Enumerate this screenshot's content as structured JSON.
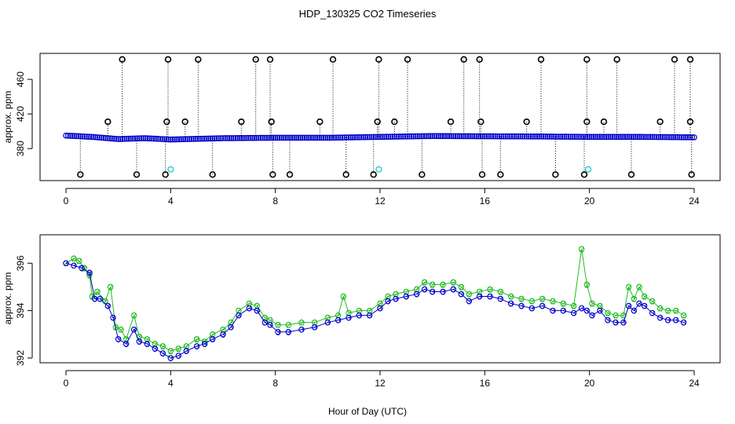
{
  "title": "HDP_130325  CO2 Timeseries",
  "xlabel": "Hour of Day (UTC)",
  "colors": {
    "blue": "#0000cc",
    "green": "#22bb22",
    "cyan": "#22cccc",
    "black": "#000000"
  },
  "chart_data": [
    {
      "type": "scatter",
      "name": "top-panel",
      "ylabel": "approx. ppm",
      "xlim": [
        0,
        24
      ],
      "ylim": [
        343,
        490
      ],
      "x_ticks": [
        "0",
        "4",
        "8",
        "12",
        "16",
        "20",
        "24"
      ],
      "y_ticks": [
        "380",
        "420",
        "460"
      ],
      "x_tick_values": [
        0,
        4,
        8,
        12,
        16,
        20,
        24
      ],
      "y_tick_values": [
        380,
        420,
        460
      ],
      "baseline": [
        [
          0,
          395
        ],
        [
          1,
          393.5
        ],
        [
          2,
          391
        ],
        [
          3,
          392
        ],
        [
          4,
          390.5
        ],
        [
          6,
          392
        ],
        [
          8,
          392.5
        ],
        [
          10,
          392.5
        ],
        [
          12,
          393.5
        ],
        [
          14,
          394.5
        ],
        [
          16,
          394.2
        ],
        [
          18,
          394
        ],
        [
          20,
          393.5
        ],
        [
          22,
          393.5
        ],
        [
          24,
          393
        ]
      ],
      "high_spikes_x": [
        2.15,
        3.9,
        5.05,
        7.25,
        7.8,
        10.2,
        11.95,
        13.05,
        15.2,
        15.8,
        18.15,
        19.9,
        21.05,
        23.25,
        23.85
      ],
      "high_spike_value": 483,
      "mid_spikes_x": [
        1.6,
        3.85,
        4.55,
        6.7,
        7.85,
        9.7,
        11.9,
        12.55,
        14.7,
        15.85,
        17.6,
        19.9,
        20.55,
        22.7,
        23.85
      ],
      "mid_spike_value": 411,
      "low_spikes_x": [
        0.55,
        2.7,
        3.8,
        5.6,
        7.9,
        8.55,
        10.7,
        11.75,
        13.6,
        15.9,
        16.6,
        18.7,
        19.8,
        21.6,
        23.9
      ],
      "low_spike_value": 350,
      "cyan_points": [
        [
          4.0,
          356
        ],
        [
          11.95,
          356
        ],
        [
          19.95,
          356
        ]
      ]
    },
    {
      "type": "scatter",
      "name": "bottom-panel",
      "ylabel": "approx. ppm",
      "xlim": [
        0,
        24
      ],
      "ylim": [
        391.8,
        397.2
      ],
      "x_ticks": [
        "0",
        "4",
        "8",
        "12",
        "16",
        "20",
        "24"
      ],
      "y_ticks": [
        "392",
        "394",
        "396"
      ],
      "x_tick_values": [
        0,
        4,
        8,
        12,
        16,
        20,
        24
      ],
      "y_tick_values": [
        392,
        394,
        396
      ],
      "series": [
        {
          "name": "2",
          "color": "green",
          "points": [
            [
              0,
              396
            ],
            [
              0.3,
              396.2
            ],
            [
              0.5,
              396.1
            ],
            [
              0.7,
              395.8
            ],
            [
              0.9,
              395.5
            ],
            [
              1.0,
              394.6
            ],
            [
              1.2,
              394.8
            ],
            [
              1.5,
              394.4
            ],
            [
              1.7,
              395.0
            ],
            [
              1.9,
              393.3
            ],
            [
              2.1,
              393.2
            ],
            [
              2.3,
              392.8
            ],
            [
              2.6,
              393.8
            ],
            [
              2.8,
              392.9
            ],
            [
              3.1,
              392.8
            ],
            [
              3.4,
              392.6
            ],
            [
              3.7,
              392.5
            ],
            [
              4.0,
              392.3
            ],
            [
              4.3,
              392.4
            ],
            [
              4.6,
              392.5
            ],
            [
              5.0,
              392.8
            ],
            [
              5.3,
              392.7
            ],
            [
              5.6,
              393.0
            ],
            [
              6.0,
              393.2
            ],
            [
              6.3,
              393.5
            ],
            [
              6.6,
              394.0
            ],
            [
              7.0,
              394.3
            ],
            [
              7.3,
              394.2
            ],
            [
              7.6,
              393.7
            ],
            [
              7.8,
              393.6
            ],
            [
              8.1,
              393.4
            ],
            [
              8.5,
              393.4
            ],
            [
              9.0,
              393.5
            ],
            [
              9.5,
              393.5
            ],
            [
              10.0,
              393.7
            ],
            [
              10.4,
              393.8
            ],
            [
              10.6,
              394.6
            ],
            [
              10.8,
              393.9
            ],
            [
              11.2,
              394.0
            ],
            [
              11.6,
              394.0
            ],
            [
              12.0,
              394.3
            ],
            [
              12.3,
              394.6
            ],
            [
              12.6,
              394.7
            ],
            [
              13.0,
              394.8
            ],
            [
              13.4,
              394.9
            ],
            [
              13.7,
              395.2
            ],
            [
              14.0,
              395.1
            ],
            [
              14.4,
              395.1
            ],
            [
              14.8,
              395.2
            ],
            [
              15.1,
              395.0
            ],
            [
              15.4,
              394.7
            ],
            [
              15.8,
              394.8
            ],
            [
              16.2,
              394.9
            ],
            [
              16.6,
              394.8
            ],
            [
              17.0,
              394.6
            ],
            [
              17.4,
              394.5
            ],
            [
              17.8,
              394.4
            ],
            [
              18.2,
              394.5
            ],
            [
              18.6,
              394.4
            ],
            [
              19.0,
              394.3
            ],
            [
              19.4,
              394.2
            ],
            [
              19.7,
              396.6
            ],
            [
              19.9,
              395.1
            ],
            [
              20.1,
              394.3
            ],
            [
              20.4,
              394.2
            ],
            [
              20.7,
              393.9
            ],
            [
              21.0,
              393.8
            ],
            [
              21.3,
              393.8
            ],
            [
              21.5,
              395.0
            ],
            [
              21.7,
              394.5
            ],
            [
              21.9,
              395.0
            ],
            [
              22.1,
              394.6
            ],
            [
              22.4,
              394.4
            ],
            [
              22.7,
              394.1
            ],
            [
              23.0,
              394.0
            ],
            [
              23.3,
              394.0
            ],
            [
              23.6,
              393.8
            ]
          ]
        },
        {
          "name": "3",
          "color": "blue",
          "points": [
            [
              0,
              396
            ],
            [
              0.3,
              395.9
            ],
            [
              0.6,
              395.8
            ],
            [
              0.9,
              395.6
            ],
            [
              1.1,
              394.5
            ],
            [
              1.3,
              394.5
            ],
            [
              1.6,
              394.2
            ],
            [
              1.8,
              393.7
            ],
            [
              2.0,
              392.8
            ],
            [
              2.3,
              392.6
            ],
            [
              2.6,
              393.2
            ],
            [
              2.8,
              392.7
            ],
            [
              3.1,
              392.6
            ],
            [
              3.4,
              392.4
            ],
            [
              3.7,
              392.2
            ],
            [
              4.0,
              392.0
            ],
            [
              4.3,
              392.1
            ],
            [
              4.6,
              392.3
            ],
            [
              5.0,
              392.5
            ],
            [
              5.3,
              392.6
            ],
            [
              5.6,
              392.8
            ],
            [
              6.0,
              393.0
            ],
            [
              6.3,
              393.3
            ],
            [
              6.6,
              393.8
            ],
            [
              7.0,
              394.1
            ],
            [
              7.3,
              394.0
            ],
            [
              7.6,
              393.5
            ],
            [
              7.8,
              393.4
            ],
            [
              8.1,
              393.1
            ],
            [
              8.5,
              393.1
            ],
            [
              9.0,
              393.2
            ],
            [
              9.5,
              393.3
            ],
            [
              10.0,
              393.5
            ],
            [
              10.4,
              393.6
            ],
            [
              10.8,
              393.7
            ],
            [
              11.2,
              393.8
            ],
            [
              11.6,
              393.8
            ],
            [
              12.0,
              394.1
            ],
            [
              12.3,
              394.4
            ],
            [
              12.6,
              394.5
            ],
            [
              13.0,
              394.6
            ],
            [
              13.4,
              394.7
            ],
            [
              13.7,
              394.9
            ],
            [
              14.0,
              394.8
            ],
            [
              14.4,
              394.8
            ],
            [
              14.8,
              394.9
            ],
            [
              15.1,
              394.7
            ],
            [
              15.4,
              394.4
            ],
            [
              15.8,
              394.6
            ],
            [
              16.2,
              394.6
            ],
            [
              16.6,
              394.5
            ],
            [
              17.0,
              394.3
            ],
            [
              17.4,
              394.2
            ],
            [
              17.8,
              394.1
            ],
            [
              18.2,
              394.2
            ],
            [
              18.6,
              394.0
            ],
            [
              19.0,
              394.0
            ],
            [
              19.4,
              393.9
            ],
            [
              19.7,
              394.1
            ],
            [
              19.9,
              394.0
            ],
            [
              20.1,
              393.8
            ],
            [
              20.4,
              394.0
            ],
            [
              20.7,
              393.6
            ],
            [
              21.0,
              393.5
            ],
            [
              21.3,
              393.5
            ],
            [
              21.5,
              394.2
            ],
            [
              21.7,
              394.0
            ],
            [
              21.9,
              394.3
            ],
            [
              22.1,
              394.2
            ],
            [
              22.4,
              393.9
            ],
            [
              22.7,
              393.7
            ],
            [
              23.0,
              393.6
            ],
            [
              23.3,
              393.6
            ],
            [
              23.6,
              393.5
            ]
          ]
        }
      ]
    }
  ]
}
